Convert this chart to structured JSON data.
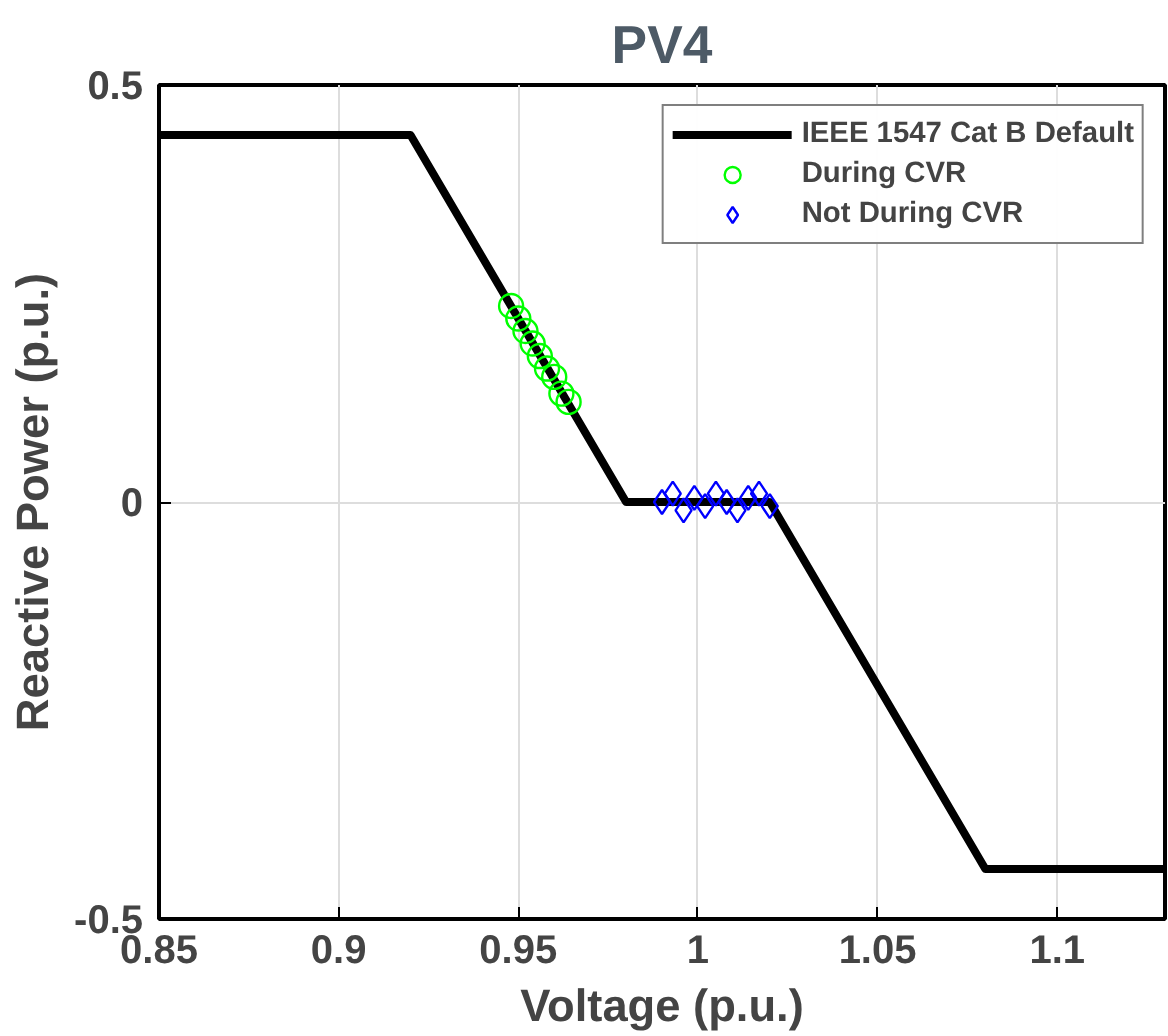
{
  "chart_data": {
    "type": "line",
    "title": "PV4",
    "xlabel": "Voltage (p.u.)",
    "ylabel": "Reactive Power (p.u.)",
    "xlim": [
      0.85,
      1.13
    ],
    "xticks": [
      0.85,
      0.9,
      0.95,
      1,
      1.05,
      1.1
    ],
    "ylim": [
      -0.5,
      0.5
    ],
    "yticks": [
      -0.5,
      0,
      0.5
    ],
    "grid": true,
    "legend": "top right",
    "series": [
      {
        "name": "IEEE 1547 Cat B Default",
        "color": "#000000",
        "marker": "none",
        "line_style": "solid",
        "x": [
          0.85,
          0.92,
          0.98,
          1.02,
          1.08,
          1.13
        ],
        "values": [
          0.44,
          0.44,
          0,
          0,
          -0.44,
          -0.44
        ]
      },
      {
        "name": "During CVR",
        "type": "scatter",
        "color": "#00ff00",
        "marker": "circle",
        "x": [
          0.948,
          0.95,
          0.952,
          0.954,
          0.956,
          0.958,
          0.96,
          0.962,
          0.964
        ],
        "values": [
          0.235,
          0.22,
          0.205,
          0.19,
          0.175,
          0.16,
          0.15,
          0.13,
          0.12
        ]
      },
      {
        "name": "Not During CVR",
        "type": "scatter",
        "color": "#0000ff",
        "marker": "diamond",
        "x": [
          0.99,
          0.993,
          0.996,
          0.999,
          1.002,
          1.005,
          1.008,
          1.011,
          1.014,
          1.017,
          1.02
        ],
        "values": [
          0,
          0.01,
          -0.01,
          0.005,
          -0.005,
          0.01,
          0,
          -0.01,
          0.005,
          0.01,
          -0.005
        ]
      }
    ]
  }
}
